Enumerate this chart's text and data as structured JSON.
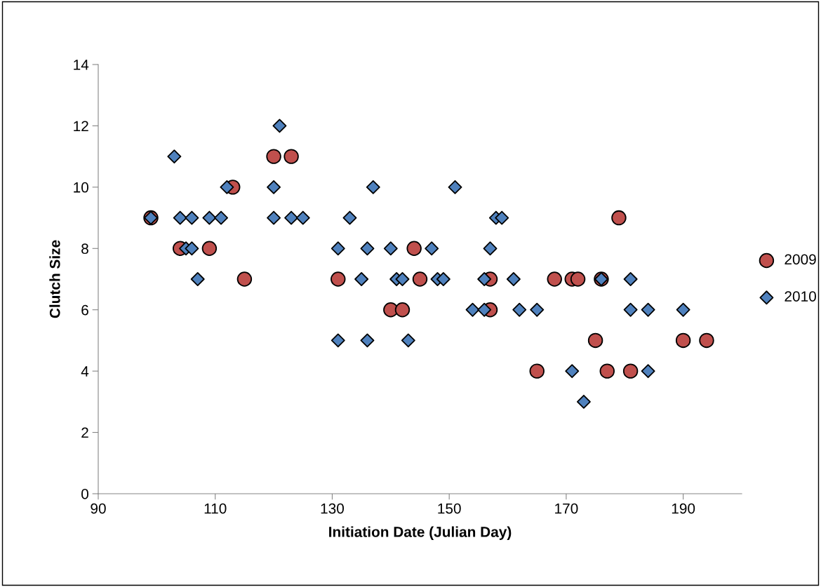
{
  "chart_data": {
    "type": "scatter",
    "xlabel": "Initiation Date (Julian Day)",
    "ylabel": "Clutch Size",
    "xlim": [
      90,
      200
    ],
    "xticks": [
      90,
      110,
      130,
      150,
      170,
      190
    ],
    "ylim": [
      0,
      14
    ],
    "yticks": [
      0,
      2,
      4,
      6,
      8,
      10,
      12,
      14
    ],
    "grid": false,
    "legend": "right",
    "series": [
      {
        "name": "2009",
        "color": "#c0504d",
        "marker": "circle",
        "x": [
          99,
          104,
          109,
          113,
          115,
          120,
          123,
          131,
          140,
          142,
          144,
          145,
          157,
          157,
          165,
          168,
          171,
          172,
          175,
          176,
          177,
          179,
          181,
          190,
          194
        ],
        "values": [
          9,
          8,
          8,
          10,
          7,
          11,
          11,
          7,
          6,
          6,
          8,
          7,
          7,
          6,
          4,
          7,
          7,
          7,
          5,
          7,
          4,
          9,
          4,
          5,
          5
        ]
      },
      {
        "name": "2010",
        "color": "#4f81bd",
        "marker": "diamond",
        "x": [
          99,
          103,
          104,
          105,
          106,
          106,
          107,
          109,
          111,
          112,
          120,
          120,
          121,
          123,
          125,
          131,
          131,
          133,
          135,
          136,
          136,
          137,
          140,
          141,
          142,
          143,
          147,
          148,
          149,
          151,
          154,
          156,
          156,
          157,
          158,
          159,
          161,
          162,
          165,
          171,
          173,
          176,
          181,
          181,
          184,
          184,
          190
        ],
        "values": [
          9,
          11,
          9,
          8,
          9,
          8,
          7,
          9,
          9,
          10,
          10,
          9,
          12,
          9,
          9,
          8,
          5,
          9,
          7,
          8,
          5,
          10,
          8,
          7,
          7,
          5,
          8,
          7,
          7,
          10,
          6,
          7,
          6,
          8,
          9,
          9,
          7,
          6,
          6,
          4,
          3,
          7,
          7,
          6,
          6,
          4,
          6
        ]
      }
    ]
  }
}
